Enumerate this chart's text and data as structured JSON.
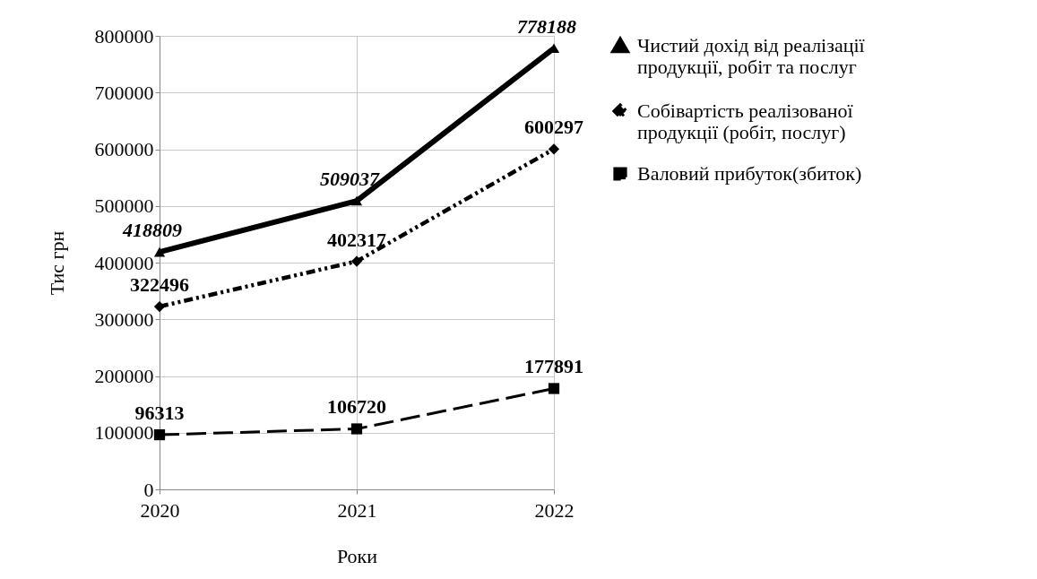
{
  "chart_data": {
    "type": "line",
    "xlabel": "Роки",
    "ylabel": "Тис грн",
    "categories": [
      "2020",
      "2021",
      "2022"
    ],
    "series": [
      {
        "name": "Чистий дохід від реалізації продукції, робіт  та послуг",
        "color": "#000000",
        "values": [
          418809,
          509037,
          778188
        ],
        "marker": "triangle",
        "line_style": "solid"
      },
      {
        "name": "Собівартість реалізованої продукції (робіт, послуг)",
        "color": "#000000",
        "values": [
          322496,
          402317,
          600297
        ],
        "marker": "diamond",
        "line_style": "dotted"
      },
      {
        "name": "Валовий прибуток(збиток)",
        "color": "#000000",
        "values": [
          96313,
          106720,
          177891
        ],
        "marker": "square",
        "line_style": "dashed"
      }
    ],
    "ylim": [
      0,
      800000
    ],
    "yticks": [
      0,
      100000,
      200000,
      300000,
      400000,
      500000,
      600000,
      700000,
      800000
    ],
    "grid": true,
    "legend": "right",
    "data_labels": true
  }
}
